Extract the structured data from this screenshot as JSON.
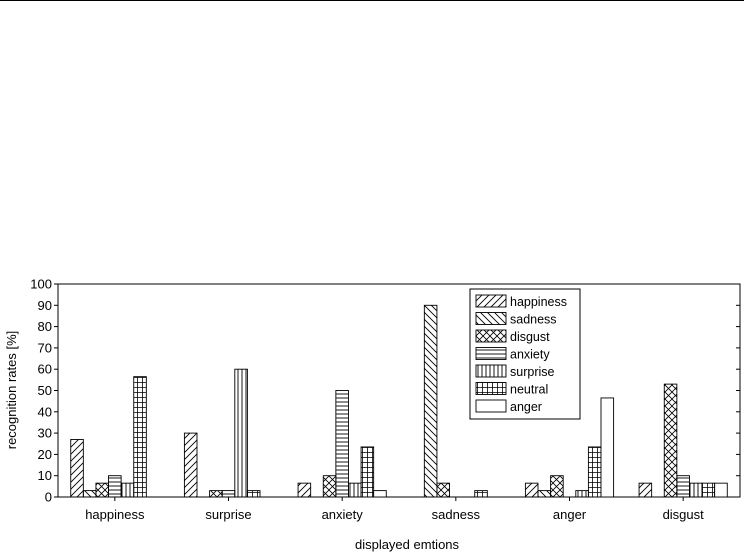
{
  "chart_data": {
    "type": "bar",
    "xlabel": "displayed emtions",
    "ylabel": "recognition rates [%]",
    "ylim": [
      0,
      100
    ],
    "yticks": [
      0,
      10,
      20,
      30,
      40,
      50,
      60,
      70,
      80,
      90,
      100
    ],
    "categories": [
      "happiness",
      "surprise",
      "anxiety",
      "sadness",
      "anger",
      "disgust"
    ],
    "legend_position": "top-right",
    "grid": false,
    "series": [
      {
        "name": "happiness",
        "pattern": "diag-fwd",
        "values": [
          27,
          30,
          6.5,
          0,
          6.5,
          6.5
        ]
      },
      {
        "name": "sadness",
        "pattern": "diag-back",
        "values": [
          3,
          0,
          0,
          90,
          3,
          0
        ]
      },
      {
        "name": "disgust",
        "pattern": "cross-diag",
        "values": [
          6.5,
          3,
          10,
          6.5,
          10,
          53
        ]
      },
      {
        "name": "anxiety",
        "pattern": "horizontal",
        "values": [
          10,
          3,
          50,
          0,
          0,
          10
        ]
      },
      {
        "name": "surprise",
        "pattern": "vertical",
        "values": [
          6.5,
          60,
          6.5,
          0,
          3,
          6.5
        ]
      },
      {
        "name": "neutral",
        "pattern": "grid",
        "values": [
          56.5,
          3,
          23.5,
          3,
          23.5,
          6.5
        ]
      },
      {
        "name": "anger",
        "pattern": "empty",
        "values": [
          0,
          0,
          3,
          0,
          46.5,
          6.5
        ]
      }
    ]
  }
}
